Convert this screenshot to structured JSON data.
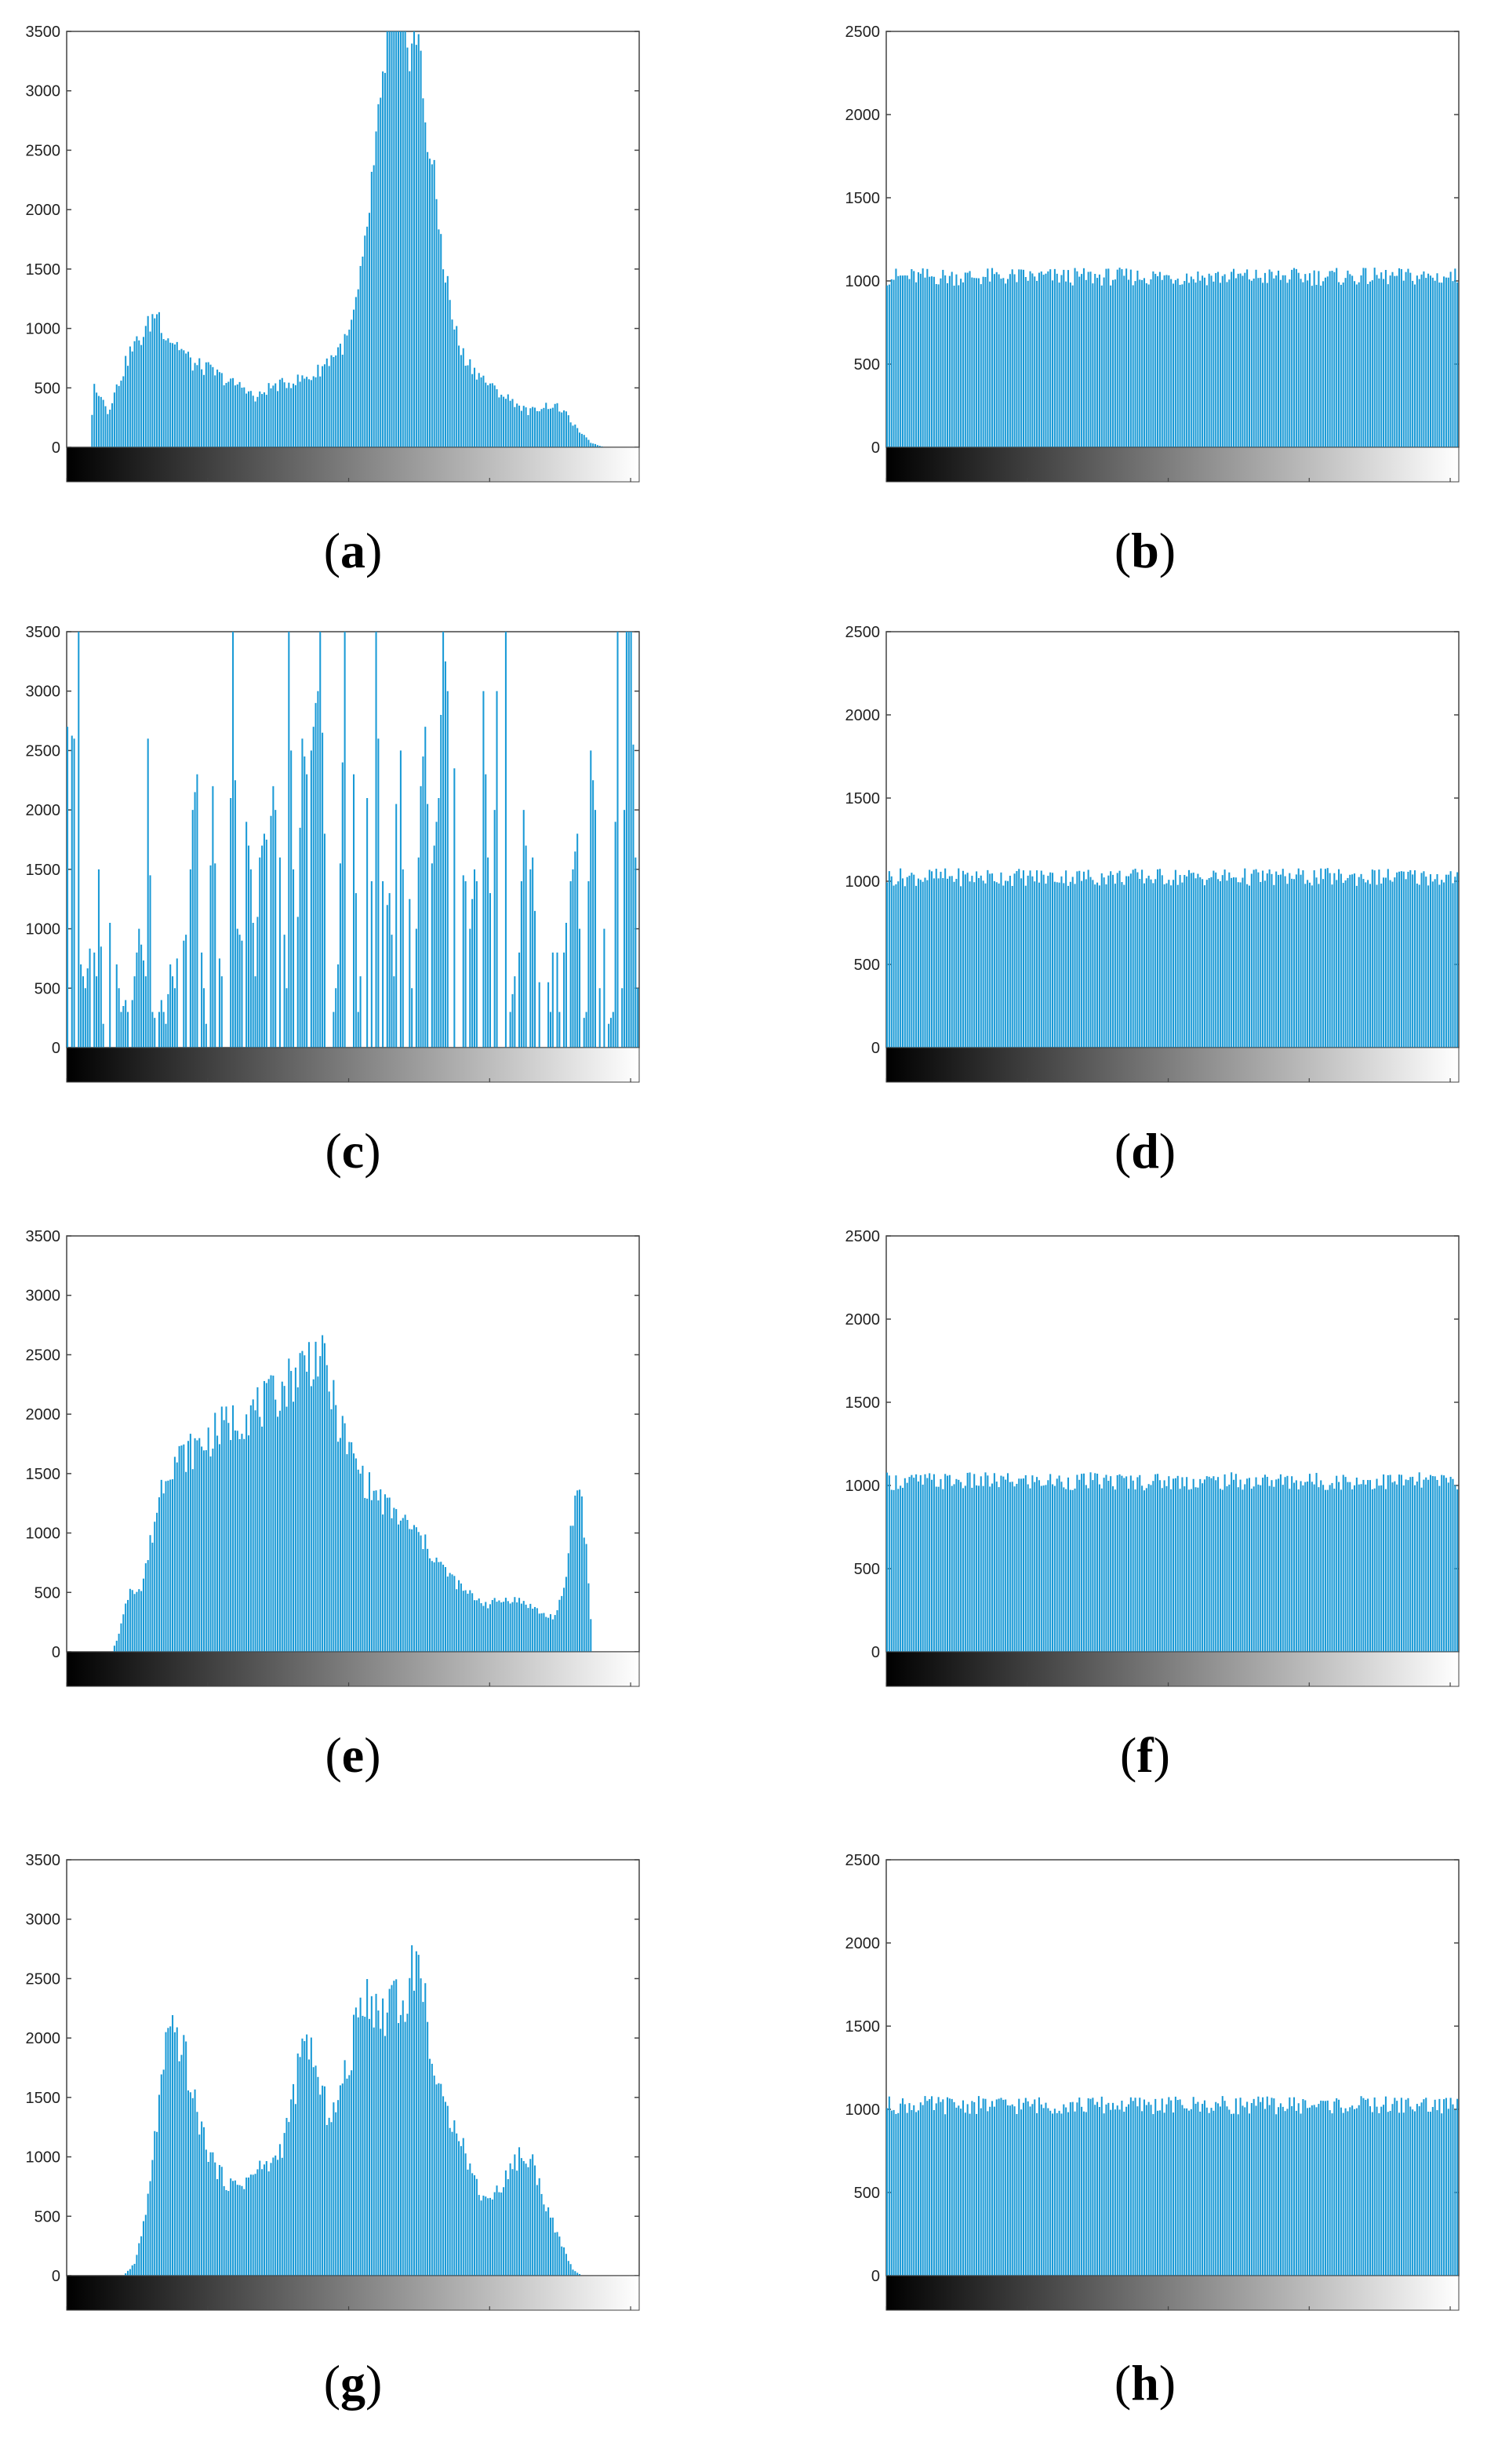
{
  "chart_data": [
    {
      "type": "bar",
      "panel_label": "a",
      "ylim": [
        0,
        3500
      ],
      "yticks": [
        0,
        500,
        1000,
        1500,
        2000,
        2500,
        3000,
        3500
      ],
      "xrange": [
        0,
        255
      ],
      "series_color": "#1a9ad6",
      "profile": "a"
    },
    {
      "type": "bar",
      "panel_label": "b",
      "ylim": [
        0,
        2500
      ],
      "yticks": [
        0,
        500,
        1000,
        1500,
        2000,
        2500
      ],
      "xrange": [
        0,
        255
      ],
      "series_color": "#1a9ad6",
      "profile": "flat",
      "level": 1000
    },
    {
      "type": "bar",
      "panel_label": "c",
      "ylim": [
        0,
        3500
      ],
      "yticks": [
        0,
        500,
        1000,
        1500,
        2000,
        2500,
        3000,
        3500
      ],
      "xrange": [
        0,
        255
      ],
      "series_color": "#1a9ad6",
      "profile": "c"
    },
    {
      "type": "bar",
      "panel_label": "d",
      "ylim": [
        0,
        2500
      ],
      "yticks": [
        0,
        500,
        1000,
        1500,
        2000,
        2500
      ],
      "xrange": [
        0,
        255
      ],
      "series_color": "#1a9ad6",
      "profile": "flat",
      "level": 1000
    },
    {
      "type": "bar",
      "panel_label": "e",
      "ylim": [
        0,
        3500
      ],
      "yticks": [
        0,
        500,
        1000,
        1500,
        2000,
        2500,
        3000,
        3500
      ],
      "xrange": [
        0,
        255
      ],
      "series_color": "#1a9ad6",
      "profile": "e"
    },
    {
      "type": "bar",
      "panel_label": "f",
      "ylim": [
        0,
        2500
      ],
      "yticks": [
        0,
        500,
        1000,
        1500,
        2000,
        2500
      ],
      "xrange": [
        0,
        255
      ],
      "series_color": "#1a9ad6",
      "profile": "flat",
      "level": 1000
    },
    {
      "type": "bar",
      "panel_label": "g",
      "ylim": [
        0,
        3500
      ],
      "yticks": [
        0,
        500,
        1000,
        1500,
        2000,
        2500,
        3000,
        3500
      ],
      "xrange": [
        0,
        255
      ],
      "series_color": "#1a9ad6",
      "profile": "g"
    },
    {
      "type": "bar",
      "panel_label": "h",
      "ylim": [
        0,
        2500
      ],
      "yticks": [
        0,
        500,
        1000,
        1500,
        2000,
        2500
      ],
      "xrange": [
        0,
        255
      ],
      "series_color": "#1a9ad6",
      "profile": "flat",
      "level": 1000
    }
  ],
  "profiles": {
    "a": [
      [
        0,
        0
      ],
      [
        10,
        0
      ],
      [
        12,
        520
      ],
      [
        15,
        450
      ],
      [
        18,
        300
      ],
      [
        24,
        600
      ],
      [
        28,
        800
      ],
      [
        34,
        950
      ],
      [
        40,
        1150
      ],
      [
        44,
        950
      ],
      [
        50,
        850
      ],
      [
        56,
        700
      ],
      [
        64,
        650
      ],
      [
        72,
        550
      ],
      [
        80,
        500
      ],
      [
        84,
        400
      ],
      [
        90,
        500
      ],
      [
        100,
        550
      ],
      [
        110,
        600
      ],
      [
        115,
        700
      ],
      [
        120,
        800
      ],
      [
        125,
        900
      ],
      [
        128,
        1100
      ],
      [
        132,
        1500
      ],
      [
        136,
        2200
      ],
      [
        140,
        2800
      ],
      [
        143,
        3500
      ],
      [
        156,
        3500
      ],
      [
        160,
        2800
      ],
      [
        164,
        2200
      ],
      [
        168,
        1600
      ],
      [
        172,
        1100
      ],
      [
        176,
        800
      ],
      [
        182,
        650
      ],
      [
        190,
        500
      ],
      [
        198,
        400
      ],
      [
        206,
        300
      ],
      [
        214,
        350
      ],
      [
        218,
        350
      ],
      [
        222,
        300
      ],
      [
        228,
        150
      ],
      [
        234,
        40
      ],
      [
        240,
        0
      ],
      [
        255,
        0
      ]
    ],
    "e": [
      [
        0,
        0
      ],
      [
        20,
        0
      ],
      [
        22,
        100
      ],
      [
        25,
        300
      ],
      [
        28,
        550
      ],
      [
        33,
        520
      ],
      [
        38,
        1000
      ],
      [
        42,
        1400
      ],
      [
        46,
        1600
      ],
      [
        52,
        1650
      ],
      [
        60,
        1750
      ],
      [
        70,
        1900
      ],
      [
        80,
        2000
      ],
      [
        90,
        2100
      ],
      [
        100,
        2300
      ],
      [
        106,
        2450
      ],
      [
        112,
        2500
      ],
      [
        116,
        2350
      ],
      [
        120,
        2000
      ],
      [
        126,
        1700
      ],
      [
        134,
        1400
      ],
      [
        144,
        1200
      ],
      [
        156,
        1000
      ],
      [
        168,
        700
      ],
      [
        178,
        500
      ],
      [
        188,
        400
      ],
      [
        198,
        450
      ],
      [
        206,
        400
      ],
      [
        214,
        300
      ],
      [
        218,
        300
      ],
      [
        222,
        500
      ],
      [
        225,
        1000
      ],
      [
        228,
        1400
      ],
      [
        230,
        1300
      ],
      [
        233,
        600
      ],
      [
        235,
        0
      ],
      [
        255,
        0
      ]
    ],
    "g": [
      [
        0,
        0
      ],
      [
        25,
        0
      ],
      [
        30,
        100
      ],
      [
        35,
        500
      ],
      [
        40,
        1300
      ],
      [
        44,
        1900
      ],
      [
        48,
        2050
      ],
      [
        52,
        1900
      ],
      [
        56,
        1500
      ],
      [
        62,
        1100
      ],
      [
        68,
        850
      ],
      [
        74,
        750
      ],
      [
        80,
        800
      ],
      [
        86,
        900
      ],
      [
        92,
        950
      ],
      [
        96,
        1100
      ],
      [
        100,
        1400
      ],
      [
        104,
        1800
      ],
      [
        108,
        2000
      ],
      [
        112,
        1600
      ],
      [
        116,
        1400
      ],
      [
        120,
        1400
      ],
      [
        126,
        1800
      ],
      [
        130,
        2200
      ],
      [
        134,
        2450
      ],
      [
        138,
        2200
      ],
      [
        142,
        2200
      ],
      [
        146,
        2500
      ],
      [
        150,
        2200
      ],
      [
        154,
        2550
      ],
      [
        156,
        2700
      ],
      [
        160,
        2300
      ],
      [
        164,
        1700
      ],
      [
        168,
        1400
      ],
      [
        174,
        1300
      ],
      [
        180,
        900
      ],
      [
        186,
        650
      ],
      [
        192,
        700
      ],
      [
        198,
        900
      ],
      [
        202,
        1000
      ],
      [
        208,
        950
      ],
      [
        214,
        600
      ],
      [
        220,
        300
      ],
      [
        226,
        50
      ],
      [
        230,
        0
      ],
      [
        255,
        0
      ]
    ],
    "c": [
      [
        0,
        2700
      ],
      [
        1,
        2650
      ],
      [
        3,
        2600
      ],
      [
        5,
        3500
      ],
      [
        6,
        700
      ],
      [
        8,
        500
      ],
      [
        11,
        1000
      ],
      [
        13,
        600
      ],
      [
        14,
        1500
      ],
      [
        16,
        200
      ],
      [
        18,
        600
      ],
      [
        20,
        1500
      ],
      [
        22,
        700
      ],
      [
        24,
        300
      ],
      [
        26,
        400
      ],
      [
        28,
        200
      ],
      [
        32,
        1000
      ],
      [
        35,
        600
      ],
      [
        36,
        2600
      ],
      [
        38,
        300
      ],
      [
        40,
        200
      ],
      [
        42,
        400
      ],
      [
        44,
        200
      ],
      [
        46,
        700
      ],
      [
        48,
        500
      ],
      [
        50,
        1000
      ],
      [
        52,
        900
      ],
      [
        54,
        1000
      ],
      [
        56,
        2000
      ],
      [
        58,
        2300
      ],
      [
        60,
        800
      ],
      [
        62,
        200
      ],
      [
        65,
        2200
      ],
      [
        67,
        900
      ],
      [
        69,
        600
      ],
      [
        71,
        500
      ],
      [
        72,
        700
      ],
      [
        74,
        3500
      ],
      [
        76,
        1000
      ],
      [
        78,
        900
      ],
      [
        80,
        1900
      ],
      [
        82,
        1500
      ],
      [
        84,
        600
      ],
      [
        86,
        1600
      ],
      [
        88,
        1800
      ],
      [
        90,
        1700
      ],
      [
        92,
        2200
      ],
      [
        94,
        1800
      ],
      [
        96,
        1400
      ],
      [
        98,
        500
      ],
      [
        99,
        3500
      ],
      [
        101,
        1500
      ],
      [
        103,
        1100
      ],
      [
        105,
        2600
      ],
      [
        107,
        2300
      ],
      [
        109,
        2500
      ],
      [
        110,
        2700
      ],
      [
        111,
        2900
      ],
      [
        112,
        3000
      ],
      [
        113,
        3500
      ],
      [
        115,
        1800
      ],
      [
        116,
        2300
      ],
      [
        117,
        2000
      ],
      [
        119,
        300
      ],
      [
        121,
        700
      ],
      [
        123,
        2400
      ],
      [
        124,
        3500
      ],
      [
        126,
        1500
      ],
      [
        128,
        2300
      ],
      [
        130,
        300
      ],
      [
        132,
        900
      ],
      [
        134,
        2100
      ],
      [
        136,
        1400
      ],
      [
        138,
        3500
      ],
      [
        140,
        1700
      ],
      [
        142,
        1100
      ],
      [
        144,
        1300
      ],
      [
        146,
        600
      ],
      [
        148,
        3500
      ],
      [
        150,
        1500
      ],
      [
        152,
        2000
      ],
      [
        154,
        500
      ],
      [
        156,
        1000
      ],
      [
        158,
        2200
      ],
      [
        160,
        2700
      ],
      [
        162,
        1400
      ],
      [
        164,
        1700
      ],
      [
        166,
        2100
      ],
      [
        168,
        3500
      ],
      [
        170,
        3000
      ],
      [
        172,
        2400
      ],
      [
        174,
        2300
      ],
      [
        176,
        1500
      ],
      [
        178,
        1400
      ],
      [
        180,
        1000
      ],
      [
        182,
        1500
      ],
      [
        184,
        1300
      ],
      [
        186,
        3000
      ],
      [
        188,
        1600
      ],
      [
        190,
        1000
      ],
      [
        192,
        3000
      ],
      [
        194,
        1500
      ],
      [
        196,
        3500
      ],
      [
        198,
        300
      ],
      [
        200,
        600
      ],
      [
        202,
        800
      ],
      [
        204,
        2000
      ],
      [
        206,
        1400
      ],
      [
        208,
        1600
      ],
      [
        210,
        700
      ],
      [
        212,
        400
      ],
      [
        214,
        800
      ],
      [
        216,
        300
      ],
      [
        218,
        1300
      ],
      [
        220,
        300
      ],
      [
        222,
        800
      ],
      [
        224,
        1300
      ],
      [
        226,
        1500
      ],
      [
        228,
        1800
      ],
      [
        230,
        200
      ],
      [
        232,
        300
      ],
      [
        234,
        2500
      ],
      [
        236,
        2000
      ],
      [
        238,
        500
      ],
      [
        240,
        1000
      ],
      [
        242,
        200
      ],
      [
        244,
        300
      ],
      [
        246,
        3500
      ],
      [
        248,
        500
      ],
      [
        250,
        3500
      ],
      [
        252,
        3500
      ],
      [
        254,
        1600
      ],
      [
        255,
        500
      ]
    ]
  }
}
